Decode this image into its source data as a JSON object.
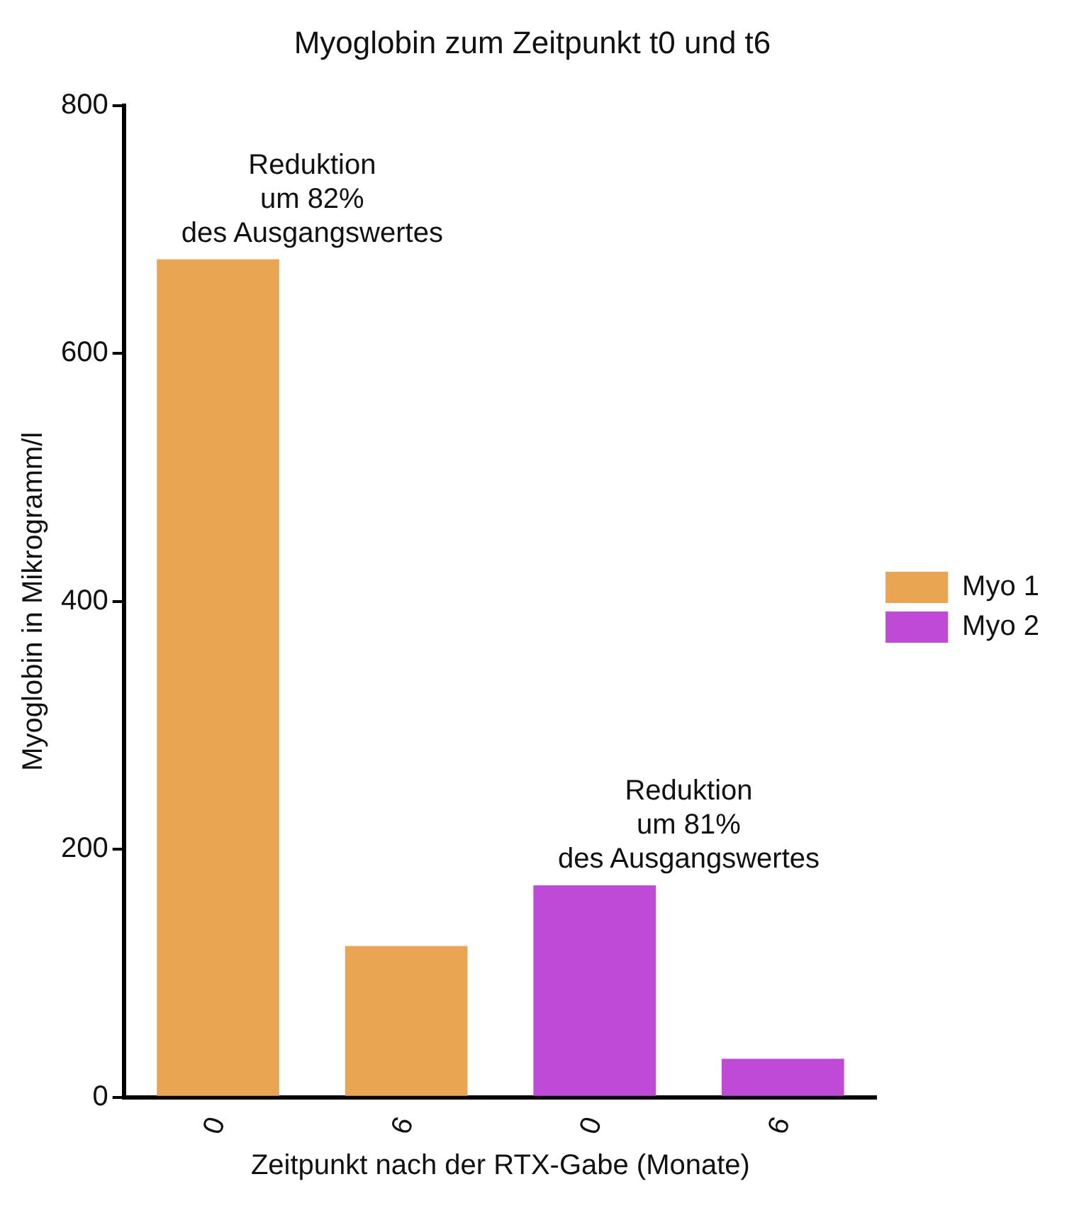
{
  "chart_data": {
    "type": "bar",
    "title": "Myoglobin zum Zeitpunkt t0 und t6",
    "xlabel": "Zeitpunkt nach der RTX-Gabe (Monate)",
    "ylabel": "Myoglobin in Mikrogramm/l",
    "categories": [
      "0",
      "6",
      "0",
      "6"
    ],
    "series": [
      {
        "name": "Myo 1",
        "color": "#e9a552",
        "values": [
          676,
          122,
          null,
          null
        ]
      },
      {
        "name": "Myo 2",
        "color": "#c04ad8",
        "values": [
          null,
          null,
          171,
          31
        ]
      }
    ],
    "ylim": [
      0,
      800
    ],
    "yticks": [
      0,
      200,
      400,
      600,
      800
    ],
    "grid": false,
    "legend": "right",
    "annotations": [
      "Reduktion\num 82%\ndes Ausgangswertes",
      "Reduktion\num 81%\ndes Ausgangswertes"
    ]
  }
}
